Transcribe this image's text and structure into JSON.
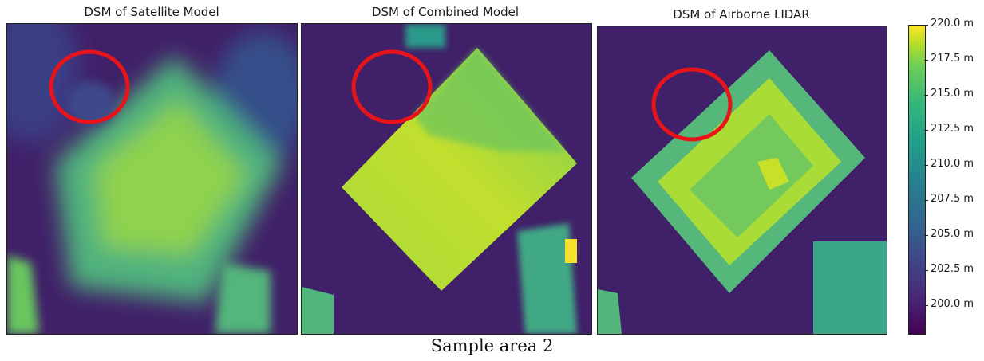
{
  "chart_data": [
    {
      "type": "heatmap",
      "title": "DSM of Satellite Model",
      "colormap": "viridis",
      "annotation": "red circle highlighting region at upper-left of the building"
    },
    {
      "type": "heatmap",
      "title": "DSM of Combined Model",
      "colormap": "viridis",
      "annotation": "red circle highlighting region at upper-left of the building"
    },
    {
      "type": "heatmap",
      "title": "DSM of Airborne LIDAR",
      "colormap": "viridis",
      "annotation": "red circle highlighting region at upper-left of the building"
    }
  ],
  "colorbar": {
    "min": 198,
    "max": 220,
    "ticks": [
      {
        "value": 220.0,
        "label": "220.0 m"
      },
      {
        "value": 217.5,
        "label": "217.5 m"
      },
      {
        "value": 215.0,
        "label": "215.0 m"
      },
      {
        "value": 212.5,
        "label": "212.5 m"
      },
      {
        "value": 210.0,
        "label": "210.0 m"
      },
      {
        "value": 207.5,
        "label": "207.5 m"
      },
      {
        "value": 205.0,
        "label": "205.0 m"
      },
      {
        "value": 202.5,
        "label": "202.5 m"
      },
      {
        "value": 200.0,
        "label": "200.0 m"
      }
    ]
  },
  "caption": "Sample area 2",
  "colors": {
    "low": "#3f1f6c",
    "mid": "#21908d",
    "high": "#fde725",
    "circle": "#e8141a"
  }
}
